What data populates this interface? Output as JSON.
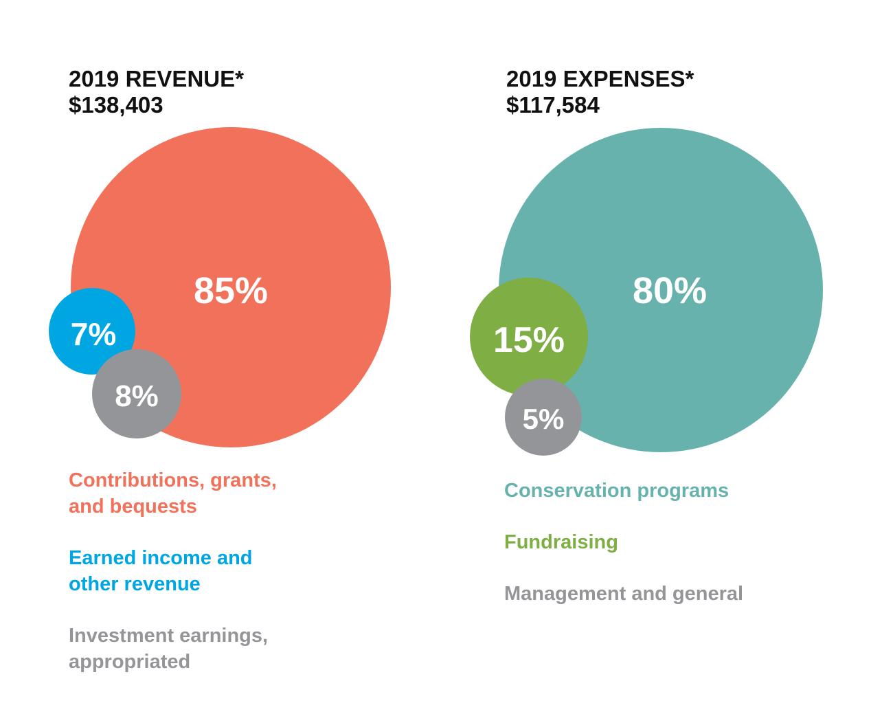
{
  "chart_data": [
    {
      "type": "bubble",
      "title": "2019 REVENUE*",
      "subtitle": "$138,403",
      "series": [
        {
          "name": "Contributions, grants, and bequests",
          "label": "Contributions, grants,\nand bequests",
          "value_label": "85%",
          "value": 85,
          "color": "#f2715a"
        },
        {
          "name": "Earned income and other revenue",
          "label": "Earned income and\nother revenue",
          "value_label": "7%",
          "value": 7,
          "color": "#00a6e2"
        },
        {
          "name": "Investment earnings, appropriated",
          "label": "Investment earnings,\nappropriated",
          "value_label": "8%",
          "value": 8,
          "color": "#939598"
        }
      ]
    },
    {
      "type": "bubble",
      "title": "2019 EXPENSES*",
      "subtitle": "$117,584",
      "series": [
        {
          "name": "Conservation programs",
          "label": "Conservation programs",
          "value_label": "80%",
          "value": 80,
          "color": "#68b2ae"
        },
        {
          "name": "Fundraising",
          "label": "Fundraising",
          "value_label": "15%",
          "value": 15,
          "color": "#7fae45"
        },
        {
          "name": "Management and general",
          "label": "Management and general",
          "value_label": "5%",
          "value": 5,
          "color": "#939598"
        }
      ]
    }
  ]
}
